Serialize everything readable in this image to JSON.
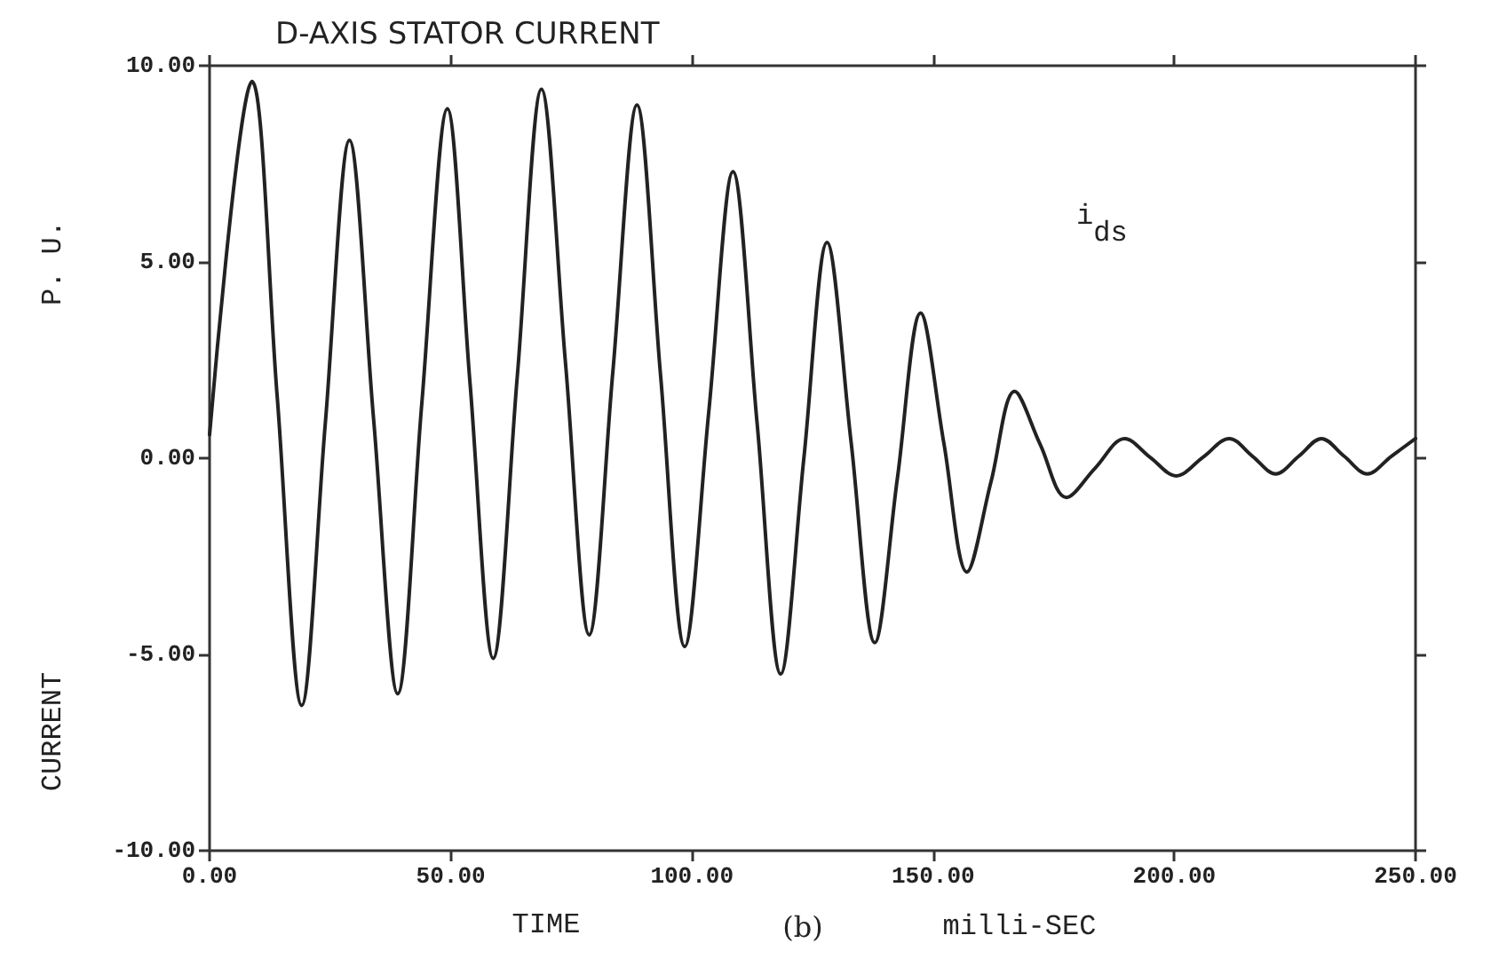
{
  "chart_data": {
    "type": "line",
    "title": "D-AXIS STATOR CURRENT",
    "xlabel": "TIME",
    "ylabel": "CURRENT",
    "annotations": [
      "P. U.",
      "i$_{ds}$",
      "(b)",
      "milli-SEC"
    ],
    "x": [
      0,
      8.8,
      14,
      19.1,
      24,
      29.0,
      34,
      39,
      44,
      49.3,
      54,
      58.8,
      63.8,
      68.8,
      73.8,
      78.7,
      83.6,
      88.6,
      93.5,
      98.5,
      103.5,
      108.5,
      113.5,
      118.4,
      123.2,
      128,
      133,
      137.9,
      142.6,
      147.4,
      152.2,
      157,
      162,
      166.9,
      172.2,
      177.6,
      183.6,
      189.7,
      195,
      200.4,
      205.9,
      211.4,
      216.2,
      221,
      225.8,
      230.5,
      235.2,
      240,
      245,
      250
    ],
    "series": [
      {
        "color": "#222222",
        "values": [
          0.6,
          9.6,
          1.6,
          -6.3,
          0.9,
          8.1,
          1.0,
          -6.0,
          1.4,
          8.9,
          1.9,
          -5.1,
          2.1,
          9.4,
          2.4,
          -4.5,
          2.2,
          9.0,
          2.1,
          -4.8,
          1.2,
          7.3,
          0.9,
          -5.5,
          0.0,
          5.5,
          0.4,
          -4.7,
          -0.5,
          3.7,
          0.4,
          -2.9,
          -0.6,
          1.7,
          0.35,
          -1.0,
          -0.25,
          0.5,
          0.02,
          -0.45,
          0.02,
          0.5,
          0.05,
          -0.4,
          0.05,
          0.5,
          0.05,
          -0.4,
          0.05,
          0.5
        ]
      }
    ],
    "xlim": [
      0,
      250
    ],
    "ylim": [
      -10,
      10
    ],
    "xticks": [
      {
        "value": 0,
        "label": "0.00"
      },
      {
        "value": 50,
        "label": "50.00"
      },
      {
        "value": 100,
        "label": "100.00"
      },
      {
        "value": 150,
        "label": "150.00"
      },
      {
        "value": 200,
        "label": "200.00"
      },
      {
        "value": 250,
        "label": "250.00"
      }
    ],
    "yticks": [
      {
        "value": -10,
        "label": "-10.00"
      },
      {
        "value": -5,
        "label": "-5.00"
      },
      {
        "value": 0,
        "label": "0.00"
      },
      {
        "value": 5,
        "label": "5.00"
      },
      {
        "value": 10,
        "label": "10.00"
      }
    ],
    "grid": false,
    "marker": "none",
    "line_style": "solid"
  }
}
